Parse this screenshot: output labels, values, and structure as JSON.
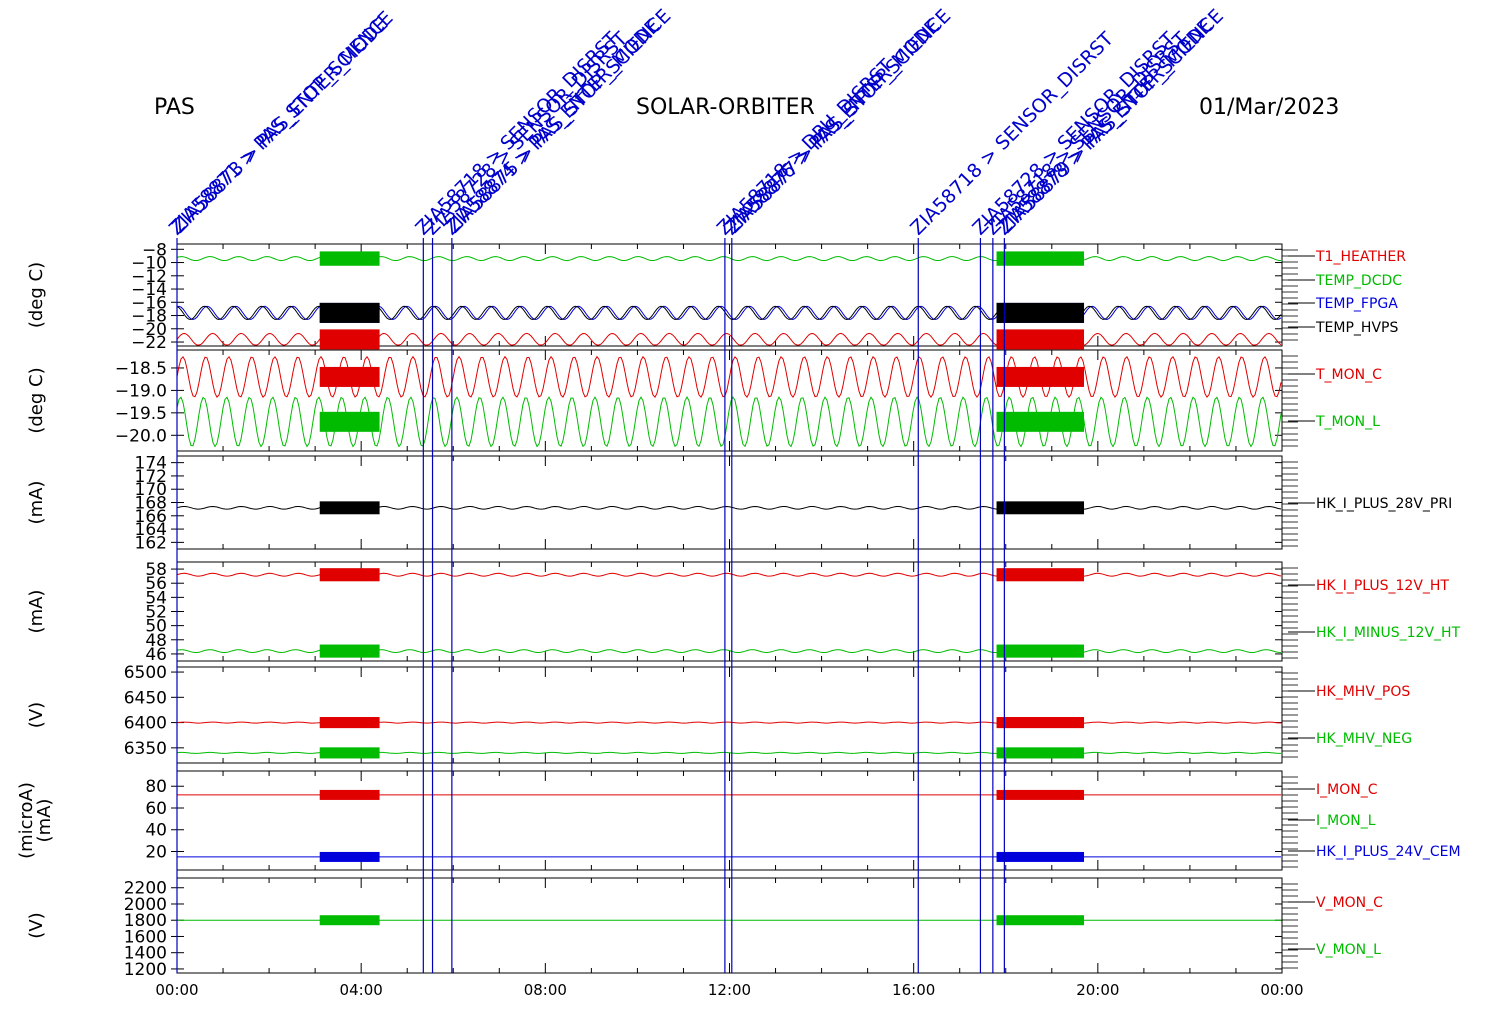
{
  "header": {
    "instrument": "PAS",
    "mission": "SOLAR-ORBITER",
    "date": "01/Mar/2023"
  },
  "chart_data": [
    {
      "type": "line",
      "ylabel": "(deg C)",
      "ylim": [
        -22.6,
        -7.2
      ],
      "y_ticks": [
        -8,
        -10,
        -12,
        -14,
        -16,
        -18,
        -20,
        -22
      ],
      "tick_labels": [
        "−8",
        "−10",
        "−12",
        "−14",
        "−16",
        "−18",
        "−20",
        "−22"
      ],
      "series": [
        {
          "name": "T1_HEATHER",
          "color": "#e00000",
          "baseline": -21.6,
          "amp": 0.9
        },
        {
          "name": "TEMP_DCDC",
          "color": "#00bb00",
          "baseline": -9.4,
          "amp": 0.3
        },
        {
          "name": "TEMP_FPGA",
          "color": "#0000dd",
          "baseline": -17.6,
          "amp": 1.0
        },
        {
          "name": "TEMP_HVPS",
          "color": "#000000",
          "baseline": -17.6,
          "amp": 1.0
        }
      ]
    },
    {
      "type": "line",
      "ylabel": "(deg C)",
      "ylim": [
        -20.35,
        -18.1
      ],
      "y_ticks": [
        -18.5,
        -19.0,
        -19.5,
        -20.0
      ],
      "tick_labels": [
        "−18.5",
        "−19.0",
        "−19.5",
        "−20.0"
      ],
      "series": [
        {
          "name": "T_MON_C",
          "color": "#e00000",
          "baseline": -18.7,
          "amp": 0.45
        },
        {
          "name": "T_MON_L",
          "color": "#00bb00",
          "baseline": -19.7,
          "amp": 0.55
        }
      ]
    },
    {
      "type": "line",
      "ylabel": "(mA)",
      "ylim": [
        161,
        175
      ],
      "y_ticks": [
        162,
        164,
        166,
        168,
        170,
        172,
        174
      ],
      "tick_labels": [
        "162",
        "164",
        "166",
        "168",
        "170",
        "172",
        "174"
      ],
      "series": [
        {
          "name": "HK_I_PLUS_28V_PRI",
          "color": "#000000",
          "baseline": 167.2,
          "amp": 0.2
        }
      ]
    },
    {
      "type": "line",
      "ylabel": "(mA)",
      "ylim": [
        45,
        59
      ],
      "y_ticks": [
        46,
        48,
        50,
        52,
        54,
        56,
        58
      ],
      "tick_labels": [
        "46",
        "48",
        "50",
        "52",
        "54",
        "56",
        "58"
      ],
      "series": [
        {
          "name": "HK_I_PLUS_12V_HT",
          "color": "#e00000",
          "baseline": 57.2,
          "amp": 0.2
        },
        {
          "name": "HK_I_MINUS_12V_HT",
          "color": "#00bb00",
          "baseline": 46.4,
          "amp": 0.2
        }
      ]
    },
    {
      "type": "line",
      "ylabel": "(V)",
      "ylim": [
        6320,
        6510
      ],
      "y_ticks": [
        6350,
        6400,
        6450,
        6500
      ],
      "tick_labels": [
        "6350",
        "6400",
        "6450",
        "6500"
      ],
      "series": [
        {
          "name": "HK_MHV_POS",
          "color": "#e00000",
          "baseline": 6400,
          "amp": 1
        },
        {
          "name": "HK_MHV_NEG",
          "color": "#00bb00",
          "baseline": 6340,
          "amp": 1
        }
      ]
    },
    {
      "type": "line",
      "ylabel": "(microA)",
      "ylabel2": "(mA)",
      "ylim": [
        3,
        94
      ],
      "y_ticks": [
        20,
        40,
        60,
        80
      ],
      "tick_labels": [
        "20",
        "40",
        "60",
        "80"
      ],
      "series": [
        {
          "name": "I_MON_C",
          "color": "#e00000",
          "baseline": 72,
          "amp": 0
        },
        {
          "name": "I_MON_L",
          "color": "#00bb00",
          "baseline": null,
          "amp": 0
        },
        {
          "name": "HK_I_PLUS_24V_CEM",
          "color": "#0000dd",
          "baseline": 15,
          "amp": 0
        }
      ]
    },
    {
      "type": "line",
      "ylabel": "(V)",
      "ylim": [
        1150,
        2320
      ],
      "y_ticks": [
        1200,
        1400,
        1600,
        1800,
        2000,
        2200
      ],
      "tick_labels": [
        "1200",
        "1400",
        "1600",
        "1800",
        "2000",
        "2200"
      ],
      "series": [
        {
          "name": "V_MON_C",
          "color": "#e00000",
          "baseline": null,
          "amp": 0
        },
        {
          "name": "V_MON_L",
          "color": "#00bb00",
          "baseline": 1800,
          "amp": 0
        }
      ]
    }
  ],
  "x_axis": {
    "range_hours": [
      0,
      24
    ],
    "ticks": [
      0,
      4,
      8,
      12,
      16,
      20,
      24
    ],
    "tick_labels": [
      "00:00",
      "04:00",
      "08:00",
      "12:00",
      "16:00",
      "20:00",
      "00:00"
    ]
  },
  "high_rate_intervals_hours": [
    [
      3.1,
      4.4
    ],
    [
      17.8,
      19.7
    ]
  ],
  "events": [
    {
      "time_hours": 0.0,
      "labels": [
        "ZIA58871 > PAS_STOP_SCIENCE",
        "ZIA58873 > PAS_ENTER_MODE"
      ]
    },
    {
      "time_hours": 5.35,
      "labels": [
        "ZIA58718 > SENSOR_DISRST"
      ]
    },
    {
      "time_hours": 5.55,
      "labels": [
        "ZIA58728 > SENSOR_DISRST"
      ]
    },
    {
      "time_hours": 5.97,
      "labels": [
        "ZIA58874 > PAS_ENTER_MODE",
        "ZIA58875 > PAS_STOP_SCIENCE"
      ]
    },
    {
      "time_hours": 11.9,
      "labels": [
        "ZIA58718 > DPU_DISRST"
      ]
    },
    {
      "time_hours": 12.05,
      "labels": [
        "ZIA58876 > PAS_ENTER_MODE",
        "ZIA58877 > PAS_STOP_SCIENCE"
      ]
    },
    {
      "time_hours": 16.1,
      "labels": [
        "ZIA58718 > SENSOR_DISRST"
      ]
    },
    {
      "time_hours": 17.45,
      "labels": [
        "ZIA58728 > SENSOR_DISRST"
      ]
    },
    {
      "time_hours": 17.72,
      "labels": [
        "ZIA58718 > SENSOR_DISRST"
      ]
    },
    {
      "time_hours": 17.97,
      "labels": [
        "ZIA58878 > PAS_ENTER_MODE",
        "ZIA58879 > PAS_STOP_SCIENCE"
      ]
    }
  ]
}
